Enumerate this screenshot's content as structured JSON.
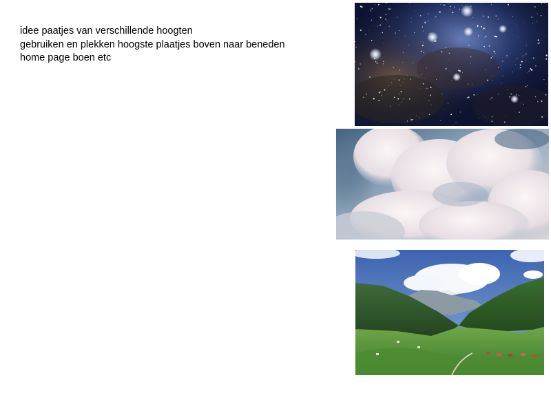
{
  "notes": {
    "lines": [
      "idee paatjes van verschillende hoogten",
      "gebruiken en plekken hoogste plaatjes boven naar beneden",
      "home page boen etc"
    ]
  },
  "images": [
    {
      "subject": "starry-sky-galaxy"
    },
    {
      "subject": "cloudscape"
    },
    {
      "subject": "green-mountain-valley"
    }
  ]
}
